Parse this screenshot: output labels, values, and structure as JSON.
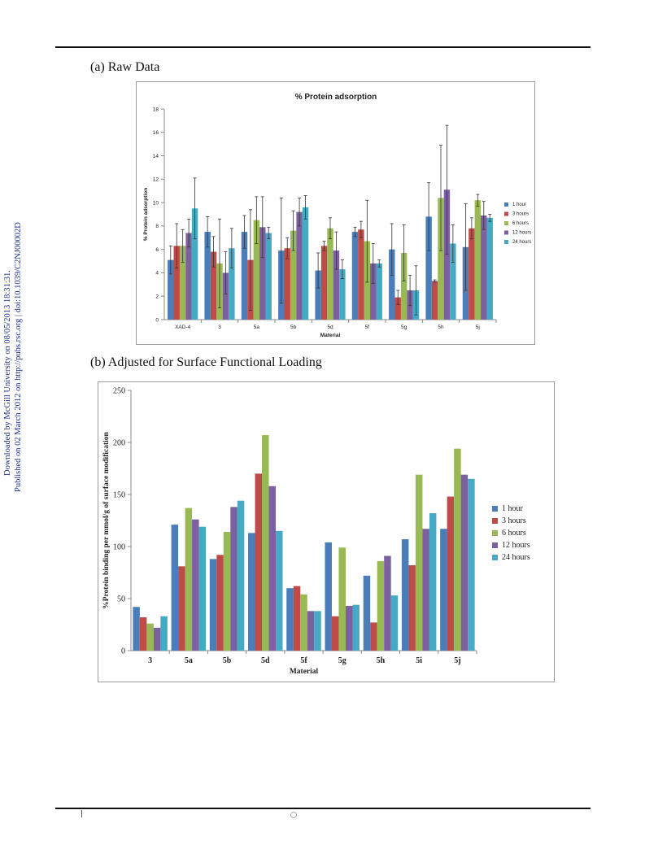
{
  "side_text": {
    "line1": "Downloaded by McGill University on 08/05/2013 18:31:31.",
    "line2": "Published on 02 March 2012 on http://pubs.rsc.org | doi:10.1039/C2NJ00002D"
  },
  "headings": {
    "a": "(a) Raw Data",
    "b": "(b) Adjusted for Surface Functional Loading"
  },
  "colors": {
    "series": [
      "#4a7ebb",
      "#be4b48",
      "#98b954",
      "#7d60a0",
      "#46aac5"
    ],
    "error_bar": "#333333"
  },
  "chart_data": [
    {
      "type": "bar",
      "title": "% Protein adsorption",
      "xlabel": "Material",
      "ylabel": "% Protein adsorption",
      "ylim": [
        0,
        18
      ],
      "yticks": [
        0,
        2,
        4,
        6,
        8,
        10,
        12,
        14,
        16,
        18
      ],
      "grid": false,
      "legend_position": "right",
      "categories": [
        "XAD-4",
        "3",
        "5a",
        "5b",
        "5d",
        "5f",
        "5g",
        "5h",
        "5j"
      ],
      "series": [
        {
          "name": "1 hour",
          "values": [
            5.1,
            7.5,
            7.5,
            5.9,
            4.2,
            7.5,
            6.0,
            8.8,
            6.2
          ],
          "errors": [
            1.2,
            1.3,
            1.4,
            4.5,
            1.5,
            0.4,
            2.2,
            2.9,
            3.7
          ]
        },
        {
          "name": "3 hours",
          "values": [
            6.3,
            5.8,
            5.1,
            6.1,
            6.3,
            7.7,
            1.9,
            3.3,
            7.8
          ],
          "errors": [
            1.9,
            1.3,
            4.3,
            0.9,
            0.4,
            0.7,
            0.6,
            0.1,
            0.9
          ]
        },
        {
          "name": "6 hours",
          "values": [
            6.3,
            4.8,
            8.5,
            7.6,
            7.8,
            6.7,
            5.7,
            10.4,
            10.2
          ],
          "errors": [
            1.4,
            3.8,
            2.0,
            1.7,
            0.9,
            3.5,
            2.4,
            4.5,
            0.5
          ]
        },
        {
          "name": "12 hours",
          "values": [
            7.4,
            4.0,
            7.9,
            9.2,
            5.9,
            4.8,
            2.5,
            11.1,
            8.9
          ],
          "errors": [
            1.2,
            1.8,
            2.6,
            1.2,
            1.6,
            1.7,
            1.3,
            5.5,
            1.2
          ]
        },
        {
          "name": "24 hours",
          "values": [
            9.5,
            6.1,
            7.4,
            9.6,
            4.3,
            4.8,
            2.5,
            6.5,
            8.7
          ],
          "errors": [
            2.6,
            1.7,
            0.5,
            1.0,
            0.8,
            0.3,
            2.1,
            1.6,
            0.3
          ]
        }
      ]
    },
    {
      "type": "bar",
      "title": "",
      "xlabel": "Material",
      "ylabel": "%Protein binding per mmol/g of surface modification",
      "ylim": [
        0,
        250
      ],
      "yticks": [
        0,
        50,
        100,
        150,
        200,
        250
      ],
      "grid": false,
      "legend_position": "right",
      "categories": [
        "3",
        "5a",
        "5b",
        "5d",
        "5f",
        "5g",
        "5h",
        "5i",
        "5j"
      ],
      "series": [
        {
          "name": "1 hour",
          "values": [
            42,
            121,
            88,
            113,
            60,
            104,
            72,
            107,
            117
          ]
        },
        {
          "name": "3 hours",
          "values": [
            32,
            81,
            92,
            170,
            62,
            33,
            27,
            82,
            148
          ]
        },
        {
          "name": "6 hours",
          "values": [
            26,
            137,
            114,
            207,
            54,
            99,
            86,
            169,
            194
          ]
        },
        {
          "name": "12 hours",
          "values": [
            22,
            126,
            138,
            158,
            38,
            43,
            91,
            117,
            169
          ]
        },
        {
          "name": "24 hours",
          "values": [
            33,
            119,
            144,
            115,
            38,
            44,
            53,
            132,
            165
          ]
        }
      ]
    }
  ]
}
